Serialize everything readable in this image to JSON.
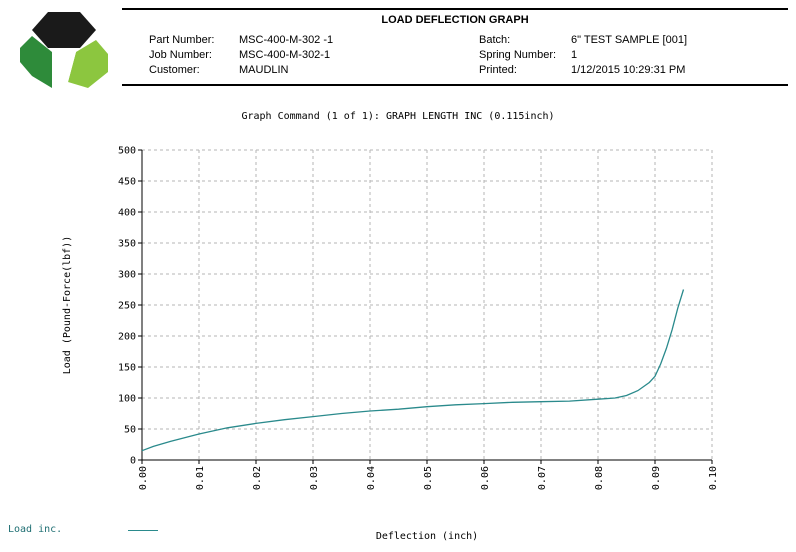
{
  "header": {
    "title": "LOAD DEFLECTION GRAPH",
    "left": [
      {
        "label": "Part Number:",
        "value": "MSC-400-M-302 -1"
      },
      {
        "label": "Job Number:",
        "value": "MSC-400-M-302-1"
      },
      {
        "label": "Customer:",
        "value": "MAUDLIN"
      }
    ],
    "right": [
      {
        "label": "Batch:",
        "value": "6\" TEST SAMPLE [001]"
      },
      {
        "label": "Spring Number:",
        "value": "1"
      },
      {
        "label": "Printed:",
        "value": "1/12/2015 10:29:31 PM"
      }
    ]
  },
  "logo": {
    "icon": "hexagon-logo-icon",
    "colors": {
      "dark": "#1a1a1a",
      "green": "#2e8b3a",
      "light_green": "#8cc63f"
    }
  },
  "chart_data": {
    "type": "line",
    "title": "Graph Command (1 of 1): GRAPH LENGTH INC (0.115inch)",
    "xlabel": "Deflection (inch)",
    "ylabel": "Load (Pound-Force(lbf))",
    "xlim": [
      0,
      0.1
    ],
    "ylim": [
      0,
      500
    ],
    "x_ticks": [
      "0.00",
      "0.01",
      "0.02",
      "0.03",
      "0.04",
      "0.05",
      "0.06",
      "0.07",
      "0.08",
      "0.09",
      "0.10"
    ],
    "y_ticks": [
      "0",
      "50",
      "100",
      "150",
      "200",
      "250",
      "300",
      "350",
      "400",
      "450",
      "500"
    ],
    "grid": true,
    "legend_position": "bottom-left",
    "series": [
      {
        "name": "Load inc.",
        "color": "#2a8a8c",
        "x": [
          0.0,
          0.002,
          0.005,
          0.01,
          0.015,
          0.02,
          0.025,
          0.03,
          0.035,
          0.04,
          0.045,
          0.05,
          0.055,
          0.06,
          0.065,
          0.07,
          0.075,
          0.08,
          0.083,
          0.085,
          0.087,
          0.089,
          0.09,
          0.091,
          0.092,
          0.093,
          0.094,
          0.095
        ],
        "y": [
          15,
          22,
          30,
          42,
          52,
          59,
          65,
          70,
          75,
          79,
          82,
          86,
          89,
          91,
          93,
          94,
          95,
          98,
          100,
          104,
          112,
          125,
          135,
          155,
          180,
          210,
          245,
          275
        ]
      }
    ]
  }
}
